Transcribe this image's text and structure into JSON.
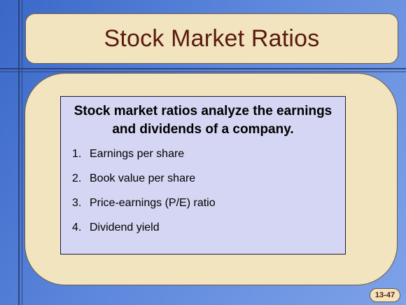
{
  "slide": {
    "title": "Stock Market Ratios",
    "intro": "Stock market ratios analyze the earnings and dividends of a company.",
    "items": [
      {
        "number": "1.",
        "label": "Earnings per share"
      },
      {
        "number": "2.",
        "label": "Book value per share"
      },
      {
        "number": "3.",
        "label": "Price-earnings (P/E) ratio"
      },
      {
        "number": "4.",
        "label": "Dividend yield"
      }
    ],
    "slide_number": "13-47"
  },
  "colors": {
    "background_blue": "#4a78d4",
    "panel_tan": "#f1e4be",
    "title_text": "#5a1a0f",
    "text_box_lavender": "#d5d6f3"
  }
}
